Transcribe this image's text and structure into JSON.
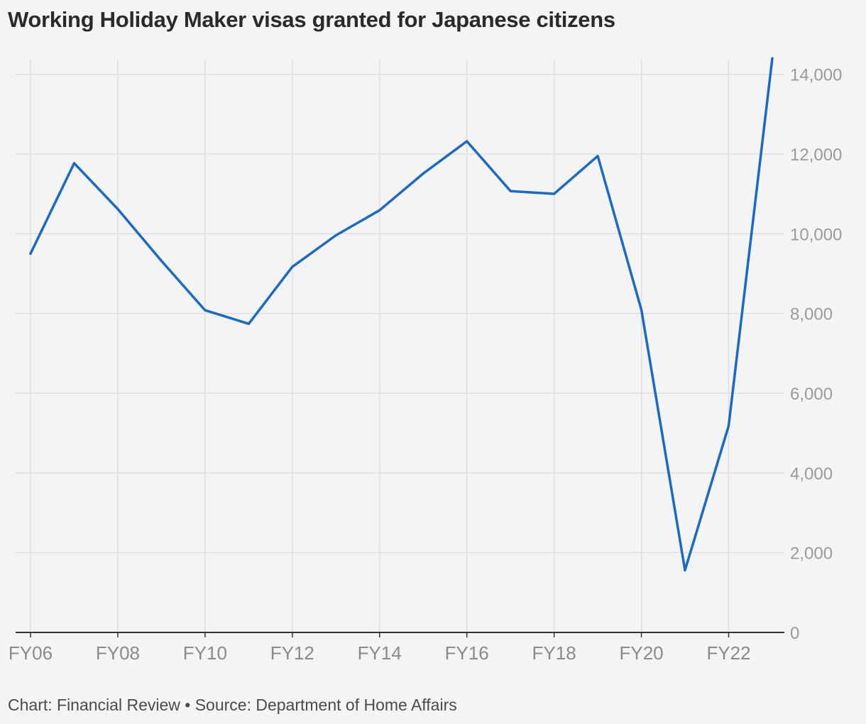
{
  "title": "Working Holiday Maker visas granted for Japanese citizens",
  "footer": "Chart: Financial Review • Source: Department of Home Affairs",
  "colors": {
    "line": "#1a6ac4",
    "grid": "#dedede",
    "axis": "#333333",
    "background": "#f4f4f4"
  },
  "chart_data": {
    "type": "line",
    "title": "Working Holiday Maker visas granted for Japanese citizens",
    "xlabel": "",
    "ylabel": "",
    "x": [
      "FY06",
      "FY07",
      "FY08",
      "FY09",
      "FY10",
      "FY11",
      "FY12",
      "FY13",
      "FY14",
      "FY15",
      "FY16",
      "FY17",
      "FY18",
      "FY19",
      "FY20",
      "FY21",
      "FY22",
      "FY23"
    ],
    "series": [
      {
        "values": [
          9500,
          11770,
          10620,
          9320,
          8080,
          7740,
          9170,
          9960,
          10590,
          11510,
          12320,
          11070,
          11000,
          11950,
          8090,
          1560,
          5180,
          14400
        ]
      }
    ],
    "x_tick_labels": [
      "FY06",
      "FY08",
      "FY10",
      "FY12",
      "FY14",
      "FY16",
      "FY18",
      "FY20",
      "FY22"
    ],
    "y_tick_labels": [
      "0",
      "2,000",
      "4,000",
      "6,000",
      "8,000",
      "10,000",
      "12,000",
      "14,000"
    ],
    "y_ticks": [
      0,
      2000,
      4000,
      6000,
      8000,
      10000,
      12000,
      14000
    ],
    "ylim": [
      0,
      14400
    ],
    "y_axis_side": "right",
    "grid": true
  }
}
